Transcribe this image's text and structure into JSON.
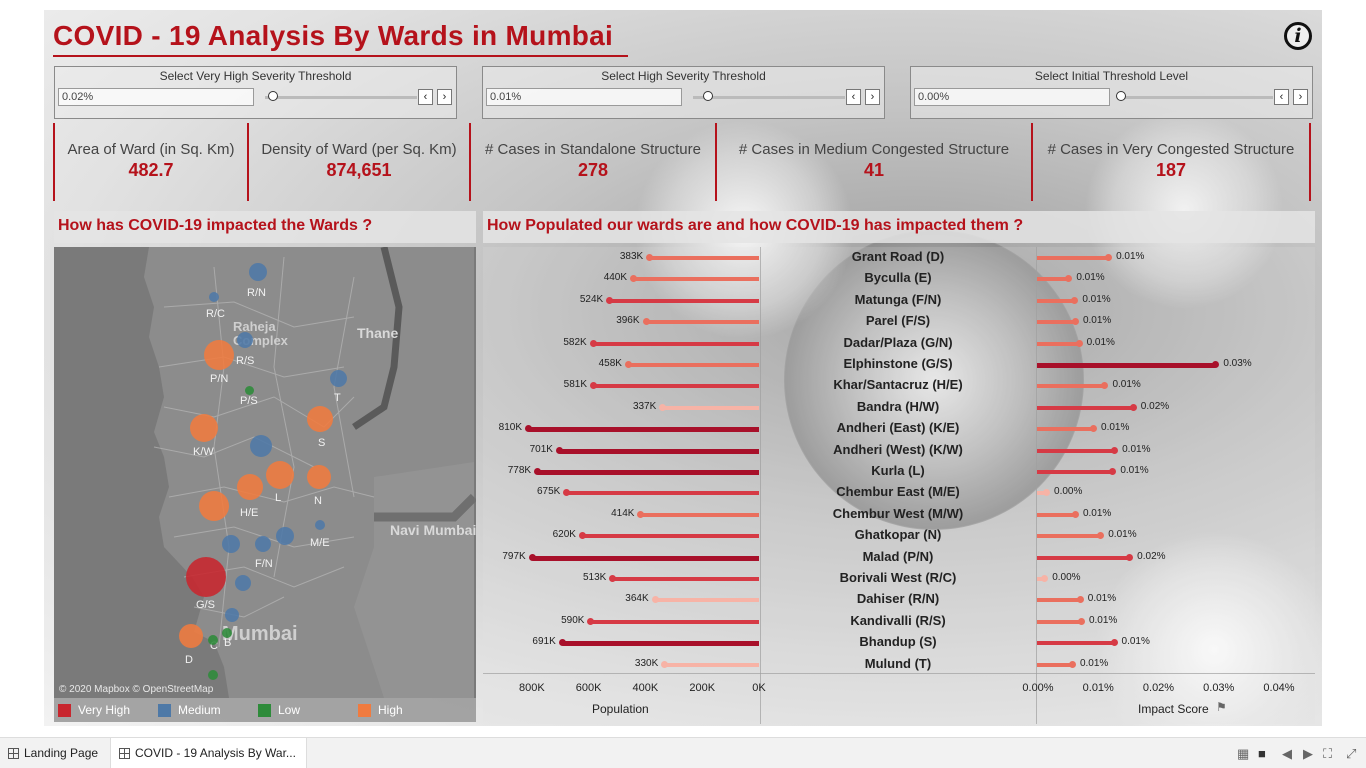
{
  "dashboard": {
    "title": "COVID - 19 Analysis By Wards in Mumbai",
    "info_label": "i"
  },
  "sliders": [
    {
      "label": "Select Very High Severity Threshold",
      "value": "0.02%",
      "position": 0.05
    },
    {
      "label": "Select High Severity Threshold",
      "value": "0.01%",
      "position": 0.1
    },
    {
      "label": "Select Initial Threshold Level",
      "value": "0.00%",
      "position": 0.0
    }
  ],
  "kpis": [
    {
      "label": "Area of Ward (in Sq. Km)",
      "value": "482.7"
    },
    {
      "label": "Density of Ward (per Sq. Km)",
      "value": "874,651"
    },
    {
      "label": "# Cases in Standalone Structure",
      "value": "278"
    },
    {
      "label": "# Cases in Medium Congested Structure",
      "value": "41"
    },
    {
      "label": "# Cases in Very Congested Structure",
      "value": "187"
    }
  ],
  "map_panel": {
    "title": "How has COVID-19 impacted the Wards ?",
    "attribution": "© 2020 Mapbox © OpenStreetMap",
    "place_labels": [
      "Raheja",
      "Complex",
      "Thane",
      "Navi Mumbai",
      "Mumbai"
    ],
    "ward_labels": [
      "R/N",
      "R/C",
      "R/S",
      "P/N",
      "P/S",
      "T",
      "K/W",
      "S",
      "L",
      "N",
      "H/E",
      "M/E",
      "F/N",
      "G/S",
      "D",
      "C",
      "B"
    ],
    "legend": [
      {
        "label": "Very High",
        "color": "#c8262e"
      },
      {
        "label": "Medium",
        "color": "#4e79a7"
      },
      {
        "label": "Low",
        "color": "#2e8b3a"
      },
      {
        "label": "High",
        "color": "#f07b3f"
      }
    ]
  },
  "chart_panel": {
    "title": "How Populated our wards are and how COVID-19 has impacted them ?"
  },
  "chart_data": {
    "type": "bar",
    "categories": [
      "Grant Road (D)",
      "Byculla (E)",
      "Matunga (F/N)",
      "Parel (F/S)",
      "Dadar/Plaza (G/N)",
      "Elphinstone (G/S)",
      "Khar/Santacruz (H/E)",
      "Bandra (H/W)",
      "Andheri (East) (K/E)",
      "Andheri (West) (K/W)",
      "Kurla (L)",
      "Chembur East (M/E)",
      "Chembur West (M/W)",
      "Ghatkopar (N)",
      "Malad (P/N)",
      "Borivali West (R/C)",
      "Dahiser (R/N)",
      "Kandivalli (R/S)",
      "Bhandup (S)",
      "Mulund (T)"
    ],
    "series": [
      {
        "name": "Population",
        "values": [
          383000,
          440000,
          524000,
          396000,
          582000,
          458000,
          581000,
          337000,
          810000,
          701000,
          778000,
          675000,
          414000,
          620000,
          797000,
          513000,
          364000,
          590000,
          691000,
          330000
        ],
        "labels": [
          "383K",
          "440K",
          "524K",
          "396K",
          "582K",
          "458K",
          "581K",
          "337K",
          "810K",
          "701K",
          "778K",
          "675K",
          "414K",
          "620K",
          "797K",
          "513K",
          "364K",
          "590K",
          "691K",
          "330K"
        ]
      },
      {
        "name": "Impact Score",
        "values": [
          0.0118,
          0.0052,
          0.0062,
          0.0063,
          0.0069,
          0.0296,
          0.0112,
          0.0159,
          0.0093,
          0.0128,
          0.0125,
          0.0015,
          0.0063,
          0.0105,
          0.0153,
          0.0012,
          0.0071,
          0.0073,
          0.0127,
          0.0058
        ],
        "labels": [
          "0.01%",
          "0.01%",
          "0.01%",
          "0.01%",
          "0.01%",
          "0.03%",
          "0.01%",
          "0.02%",
          "0.01%",
          "0.01%",
          "0.01%",
          "0.00%",
          "0.01%",
          "0.01%",
          "0.02%",
          "0.00%",
          "0.01%",
          "0.01%",
          "0.01%",
          "0.01%"
        ]
      }
    ],
    "population_axis": {
      "title": "Population",
      "ticks": [
        "800K",
        "600K",
        "400K",
        "200K",
        "0K"
      ],
      "range": [
        0,
        830000
      ],
      "reversed": true
    },
    "impact_axis": {
      "title": "Impact Score",
      "ticks": [
        "0.00%",
        "0.01%",
        "0.02%",
        "0.03%",
        "0.04%"
      ],
      "range": [
        0,
        0.04
      ]
    },
    "colors": {
      "very_high": "#a8102a",
      "high": "#d63a45",
      "medium": "#ea6f5e",
      "low": "#f7b3a6"
    }
  },
  "tabs": [
    {
      "label": "Landing Page",
      "active": false
    },
    {
      "label": "COVID - 19 Analysis By War...",
      "active": true
    }
  ]
}
